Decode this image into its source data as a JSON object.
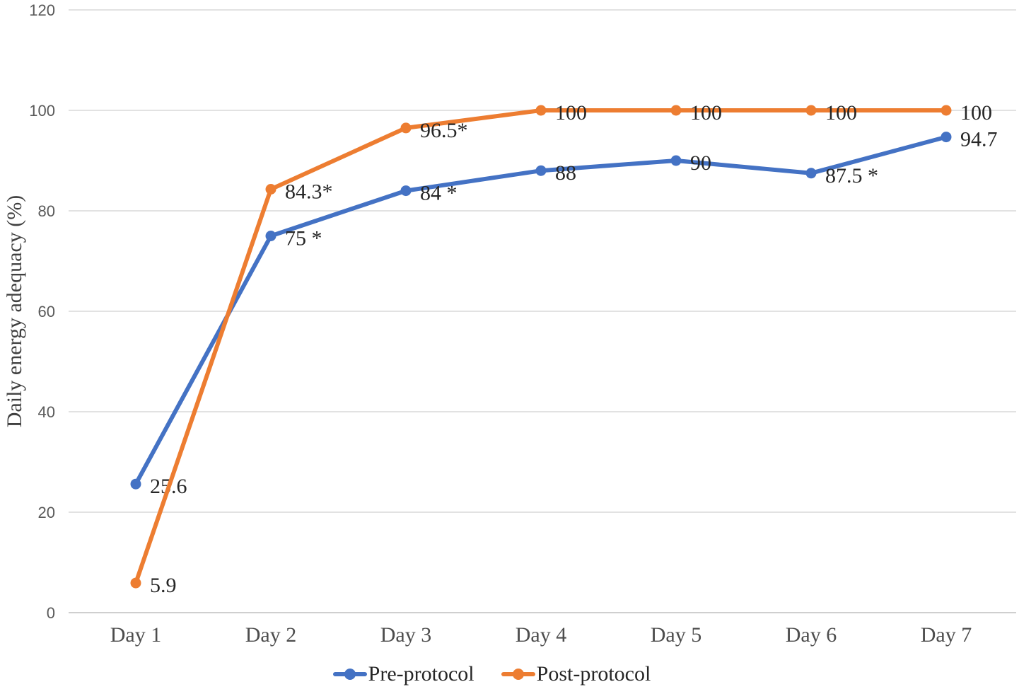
{
  "chart_data": {
    "type": "line",
    "title": "",
    "xlabel": "",
    "ylabel": "Daily energy adequacy (%)",
    "categories": [
      "Day 1",
      "Day 2",
      "Day 3",
      "Day 4",
      "Day 5",
      "Day 6",
      "Day 7"
    ],
    "y_ticks": [
      0,
      20,
      40,
      60,
      80,
      100,
      120
    ],
    "ylim": [
      0,
      120
    ],
    "grid": true,
    "legend_position": "bottom",
    "series": [
      {
        "name": "Pre-protocol",
        "color": "#4472C4",
        "values": [
          25.6,
          75,
          84,
          88,
          90,
          87.5,
          94.7
        ],
        "labels": [
          "25.6",
          "75 *",
          "84 *",
          "88",
          "90",
          "87.5 *",
          "94.7"
        ]
      },
      {
        "name": "Post-protocol",
        "color": "#ED7D31",
        "values": [
          5.9,
          84.3,
          96.5,
          100,
          100,
          100,
          100
        ],
        "labels": [
          "5.9",
          "84.3*",
          "96.5*",
          "100",
          "100",
          "100",
          "100"
        ]
      }
    ]
  },
  "colors": {
    "gridline": "#D9D9D9",
    "axis_line": "#BFBFBF",
    "tick_label": "#595959",
    "data_label": "#262626",
    "series_blue": "#4472C4",
    "series_orange": "#ED7D31"
  }
}
